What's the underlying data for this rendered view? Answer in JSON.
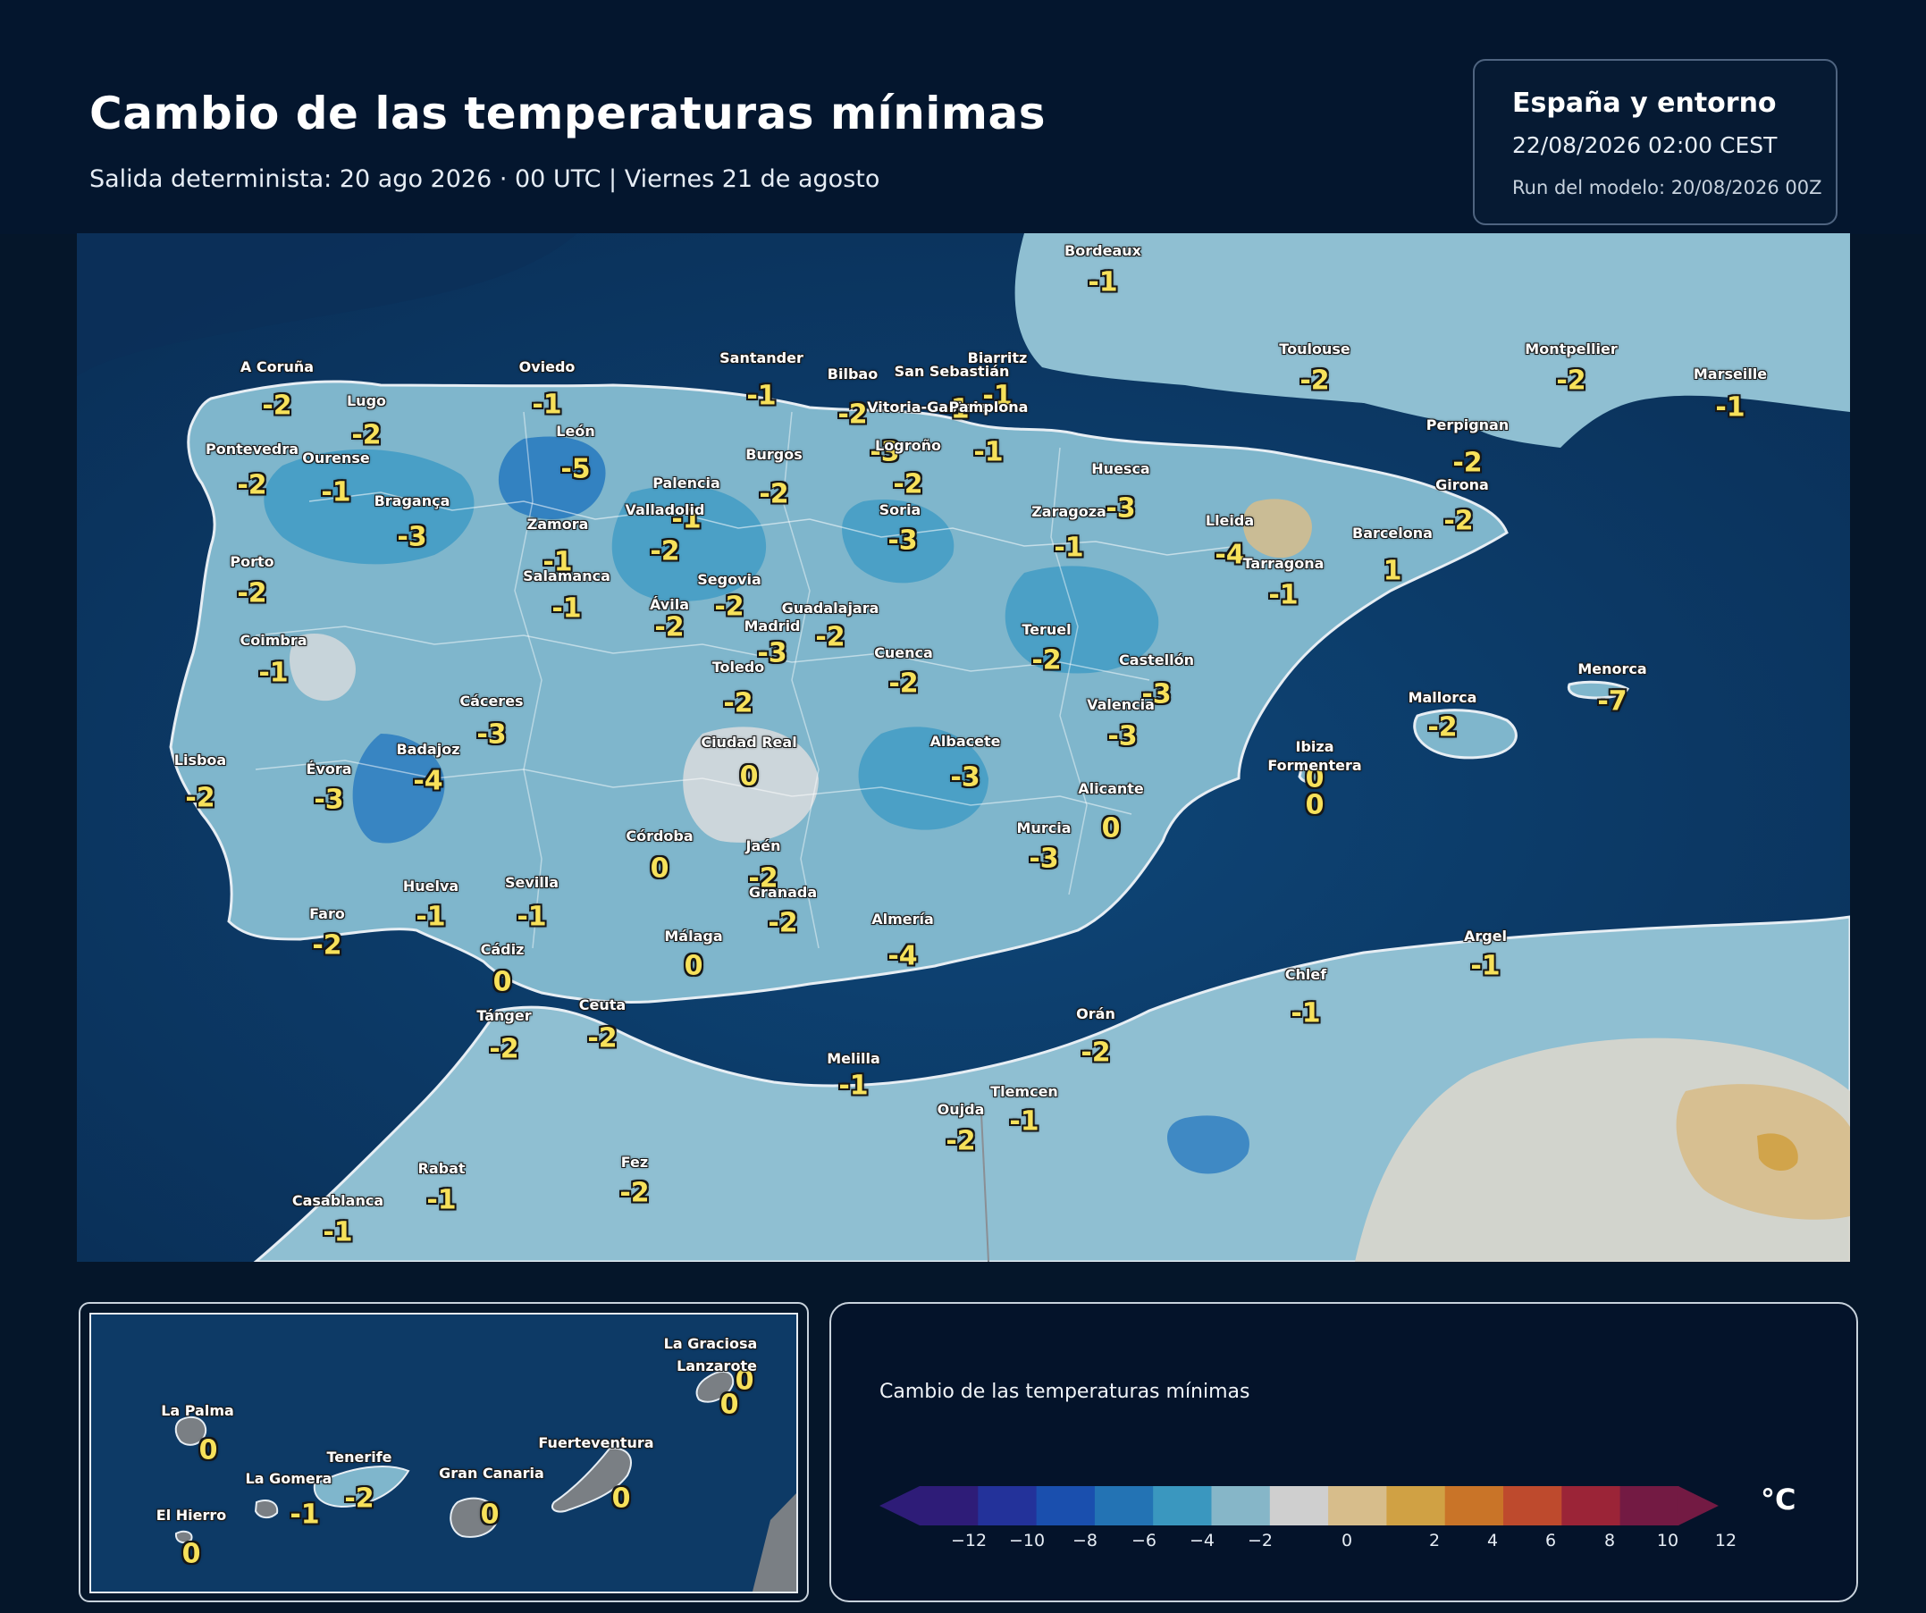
{
  "header": {
    "title": "Cambio de las temperaturas mínimas",
    "subtitle": "Salida determinista: 20 ago 2026 · 00 UTC  |  Viernes 21 de agosto"
  },
  "infobox": {
    "region": "España y entorno",
    "datetime": "22/08/2026  02:00 CEST",
    "run": "Run del modelo: 20/08/2026 00Z"
  },
  "map": {
    "labels": [
      {
        "name": "Bordeaux",
        "value": "-1"
      },
      {
        "name": "Toulouse",
        "value": "-2"
      },
      {
        "name": "Montpellier",
        "value": "-2"
      },
      {
        "name": "Marseille",
        "value": "-1"
      },
      {
        "name": "Biarritz",
        "value": "-1"
      },
      {
        "name": "A Coruña",
        "value": "-2"
      },
      {
        "name": "Lugo",
        "value": "-2"
      },
      {
        "name": "Oviedo",
        "value": "-1"
      },
      {
        "name": "Santander",
        "value": "-1"
      },
      {
        "name": "Bilbao",
        "value": "-2"
      },
      {
        "name": "San Sebastián",
        "value": "-1"
      },
      {
        "name": "Vitoria-Gasteiz",
        "value": "-3"
      },
      {
        "name": "Pamplona",
        "value": "-1"
      },
      {
        "name": "Pontevedra",
        "value": "-2"
      },
      {
        "name": "Ourense",
        "value": "-1"
      },
      {
        "name": "León",
        "value": "-5"
      },
      {
        "name": "Burgos",
        "value": "-2"
      },
      {
        "name": "Logroño",
        "value": "-2"
      },
      {
        "name": "Palencia",
        "value": "-1"
      },
      {
        "name": "Huesca",
        "value": "-3"
      },
      {
        "name": "Perpignan",
        "value": "-2"
      },
      {
        "name": "Girona",
        "value": "-2"
      },
      {
        "name": "Bragança",
        "value": "-3"
      },
      {
        "name": "Zamora",
        "value": "-1"
      },
      {
        "name": "Valladolid",
        "value": "-2"
      },
      {
        "name": "Soria",
        "value": "-3"
      },
      {
        "name": "Zaragoza",
        "value": "-1"
      },
      {
        "name": "Lleida",
        "value": "-4"
      },
      {
        "name": "Barcelona",
        "value": "1"
      },
      {
        "name": "Tarragona",
        "value": "-1"
      },
      {
        "name": "Porto",
        "value": "-2"
      },
      {
        "name": "Salamanca",
        "value": "-1"
      },
      {
        "name": "Segovia",
        "value": "-2"
      },
      {
        "name": "Ávila",
        "value": "-2"
      },
      {
        "name": "Guadalajara",
        "value": "-2"
      },
      {
        "name": "Madrid",
        "value": "-3"
      },
      {
        "name": "Teruel",
        "value": "-2"
      },
      {
        "name": "Coimbra",
        "value": "-1"
      },
      {
        "name": "Toledo",
        "value": "-2"
      },
      {
        "name": "Cuenca",
        "value": "-2"
      },
      {
        "name": "Castellón",
        "value": "-3"
      },
      {
        "name": "Menorca",
        "value": "-7"
      },
      {
        "name": "Mallorca",
        "value": "-2"
      },
      {
        "name": "Cáceres",
        "value": "-3"
      },
      {
        "name": "Valencia",
        "value": "-3"
      },
      {
        "name": "Ciudad Real",
        "value": "0"
      },
      {
        "name": "Albacete",
        "value": "-3"
      },
      {
        "name": "Badajoz",
        "value": "-4"
      },
      {
        "name": "Lisboa",
        "value": "-2"
      },
      {
        "name": "Évora",
        "value": "-3"
      },
      {
        "name": "Ibiza",
        "value": "0"
      },
      {
        "name": "Formentera",
        "value": "0"
      },
      {
        "name": "Alicante",
        "value": "0"
      },
      {
        "name": "Córdoba",
        "value": "0"
      },
      {
        "name": "Jaén",
        "value": "-2"
      },
      {
        "name": "Murcia",
        "value": "-3"
      },
      {
        "name": "Huelva",
        "value": "-1"
      },
      {
        "name": "Sevilla",
        "value": "-1"
      },
      {
        "name": "Granada",
        "value": "-2"
      },
      {
        "name": "Faro",
        "value": "-2"
      },
      {
        "name": "Almería",
        "value": "-4"
      },
      {
        "name": "Málaga",
        "value": "0"
      },
      {
        "name": "Cádiz",
        "value": "0"
      },
      {
        "name": "Argel",
        "value": "-1"
      },
      {
        "name": "Chlef",
        "value": "-1"
      },
      {
        "name": "Ceuta",
        "value": "-2"
      },
      {
        "name": "Tánger",
        "value": "-2"
      },
      {
        "name": "Orán",
        "value": "-2"
      },
      {
        "name": "Melilla",
        "value": "-1"
      },
      {
        "name": "Tlemcen",
        "value": "-1"
      },
      {
        "name": "Oujda",
        "value": "-2"
      },
      {
        "name": "Rabat",
        "value": "-1"
      },
      {
        "name": "Fez",
        "value": "-2"
      },
      {
        "name": "Casablanca",
        "value": "-1"
      }
    ]
  },
  "inset": {
    "labels": [
      {
        "name": "La Graciosa",
        "value": "0"
      },
      {
        "name": "Lanzarote",
        "value": "0"
      },
      {
        "name": "La Palma",
        "value": "0"
      },
      {
        "name": "Tenerife",
        "value": "-2"
      },
      {
        "name": "Fuerteventura",
        "value": "0"
      },
      {
        "name": "La Gomera",
        "value": "-1"
      },
      {
        "name": "Gran Canaria",
        "value": "0"
      },
      {
        "name": "El Hierro",
        "value": "0"
      }
    ]
  },
  "legend": {
    "title": "Cambio de las temperaturas mínimas",
    "unit": "°C",
    "ticks": [
      "−12",
      "−10",
      "−8",
      "−6",
      "−4",
      "−2",
      "0",
      "2",
      "4",
      "6",
      "8",
      "10",
      "12"
    ],
    "colors": [
      "#2e1c78",
      "#23329a",
      "#1a4fae",
      "#2373b4",
      "#3a97bf",
      "#86b6c8",
      "#cfcfcf",
      "#d7bd8b",
      "#d0a144",
      "#c97428",
      "#be4a2d",
      "#9b2437",
      "#731a43"
    ]
  }
}
